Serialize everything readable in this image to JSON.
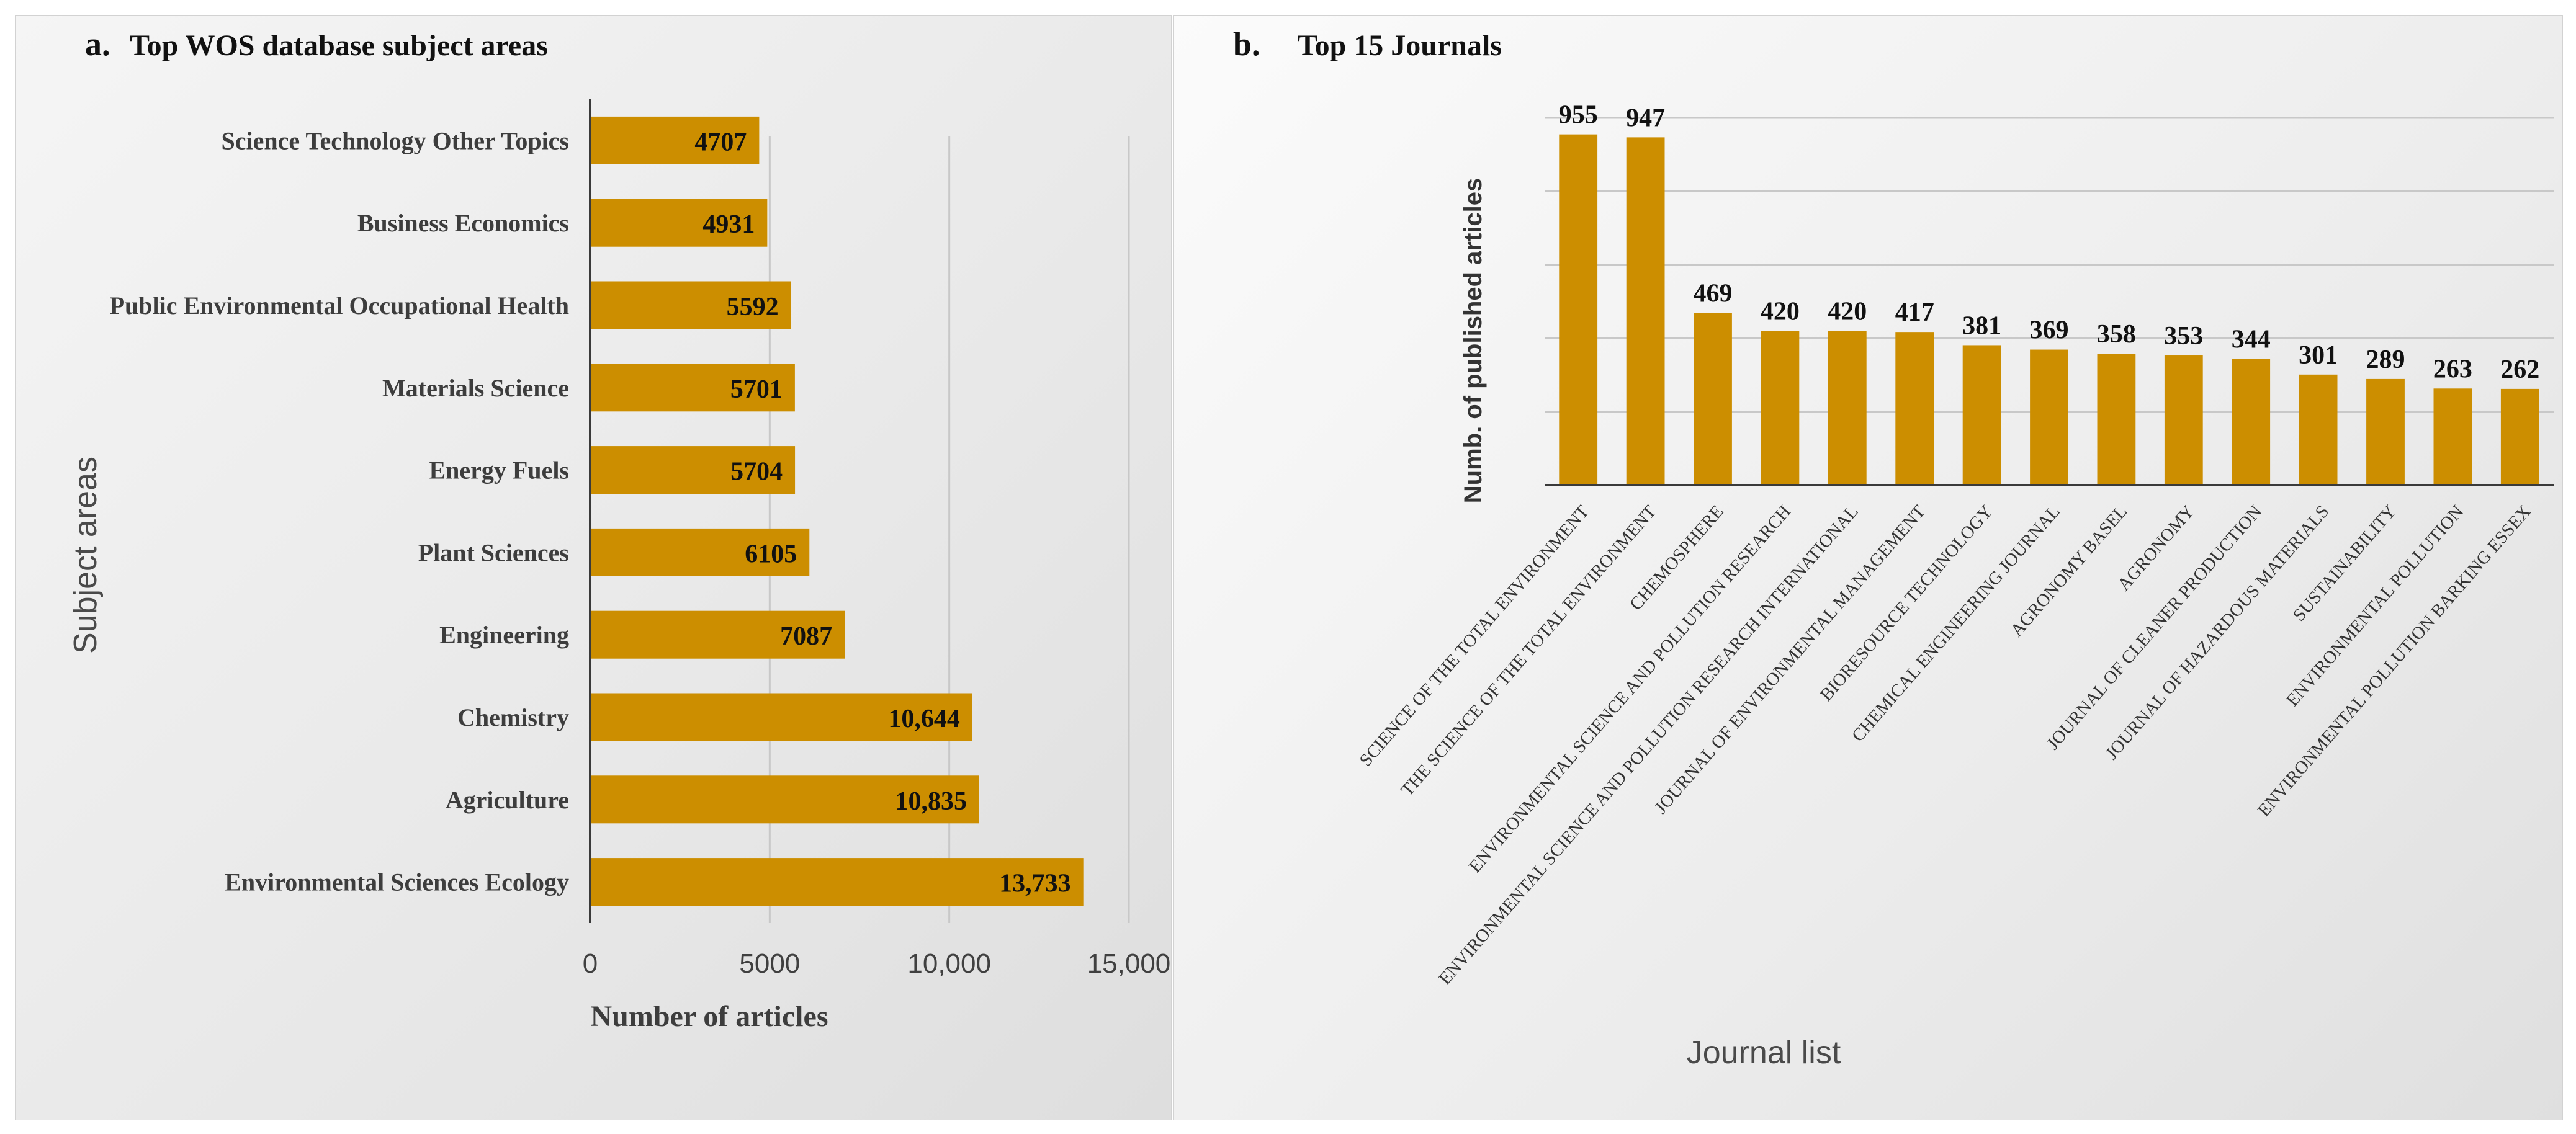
{
  "chart_data": [
    {
      "type": "bar",
      "orientation": "horizontal",
      "panel_letter": "a.",
      "title": "Top WOS database subject areas",
      "categories": [
        "Science Technology Other Topics",
        "Business Economics",
        "Public Environmental Occupational Health",
        "Materials Science",
        "Energy Fuels",
        "Plant Sciences",
        "Engineering",
        "Chemistry",
        "Agriculture",
        "Environmental Sciences Ecology"
      ],
      "values": [
        4707,
        4931,
        5592,
        5701,
        5704,
        6105,
        7087,
        10644,
        10835,
        13733
      ],
      "value_labels": [
        "4707",
        "4931",
        "5592",
        "5701",
        "5704",
        "6105",
        "7087",
        "10,644",
        "10,835",
        "13,733"
      ],
      "xlabel": "Number of articles",
      "ylabel": "Subject areas",
      "xlim": [
        0,
        15000
      ],
      "xticks": [
        0,
        5000,
        10000,
        15000
      ],
      "xtick_labels": [
        "0",
        "5000",
        "10,000",
        "15,000"
      ],
      "grid": "vertical",
      "color": "#CC8E00"
    },
    {
      "type": "bar",
      "orientation": "vertical",
      "panel_letter": "b.",
      "title": "Top 15 Journals",
      "categories": [
        "SCIENCE OF THE TOTAL ENVIRONMENT",
        "THE SCIENCE OF THE TOTAL ENVIRONMENT",
        "CHEMOSPHERE",
        "ENVIRONMENTAL SCIENCE AND POLLUTION RESEARCH",
        "ENVIRONMENTAL SCIENCE AND POLLUTION RESEARCH INTERNATIONAL",
        "JOURNAL OF ENVIRONMENTAL MANAGEMENT",
        "BIORESOURCE TECHNOLOGY",
        "CHEMICAL ENGINEERING JOURNAL",
        "AGRONOMY BASEL",
        "AGRONOMY",
        "JOURNAL OF CLEANER PRODUCTION",
        "JOURNAL OF HAZARDOUS MATERIALS",
        "SUSTAINABILITY",
        "ENVIRONMENTAL POLLUTION",
        "ENVIRONMENTAL POLLUTION BARKING ESSEX"
      ],
      "values": [
        955,
        947,
        469,
        420,
        420,
        417,
        381,
        369,
        358,
        353,
        344,
        301,
        289,
        263,
        262
      ],
      "xlabel": "Journal list",
      "ylabel": "Numb. of published articles",
      "ylim": [
        0,
        1000
      ],
      "yticks": [
        0,
        200,
        400,
        600,
        800,
        1000
      ],
      "grid": "horizontal",
      "color": "#CC8E00"
    }
  ]
}
